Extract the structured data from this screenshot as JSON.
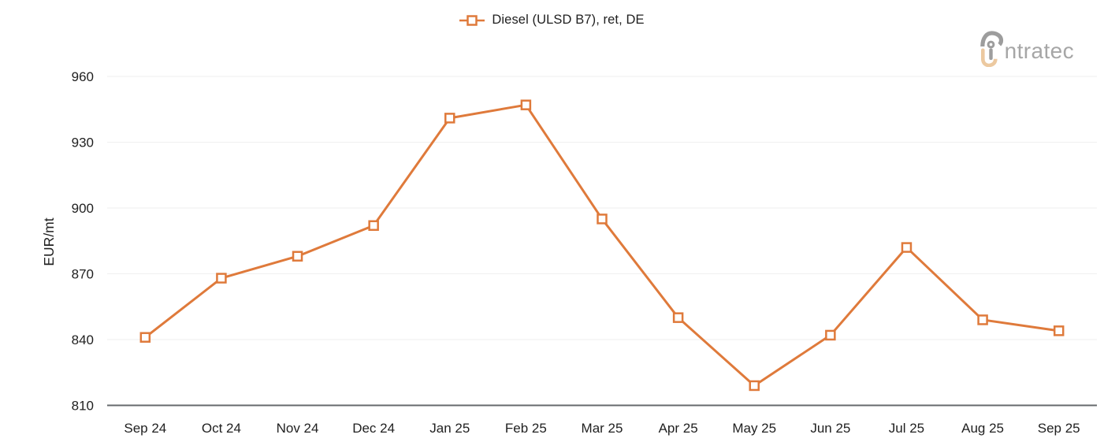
{
  "theme": {
    "background": "#ffffff",
    "grid_color": "#efefef",
    "axis_line_color": "#66696c",
    "tick_label_color": "#1f1f1f",
    "legend_text_color": "#212121",
    "logo_text_color": "#a6a6a6",
    "logo_gray": "#9d9d9d",
    "logo_beige": "#ecc9a0",
    "accent": "#DF7A3B"
  },
  "logo": {
    "brand": "intratec",
    "text_after_icon": "ntratec"
  },
  "chart_data": {
    "type": "line",
    "title": "",
    "categories": [
      "Sep 24",
      "Oct 24",
      "Nov 24",
      "Dec 24",
      "Jan 25",
      "Feb 25",
      "Mar 25",
      "Apr 25",
      "May 25",
      "Jun 25",
      "Jul 25",
      "Aug 25",
      "Sep 25"
    ],
    "series": [
      {
        "name": "Diesel (ULSD B7), ret, DE",
        "color": "#DF7A3B",
        "marker": "open-square",
        "values": [
          841,
          868,
          878,
          892,
          941,
          947,
          895,
          850,
          819,
          842,
          882,
          849,
          844
        ]
      }
    ],
    "xlabel": "",
    "ylabel": "EUR/mt",
    "ylim": [
      810,
      960
    ],
    "ytick_step": 30,
    "grid": "horizontal",
    "legend_position": "top-center"
  }
}
